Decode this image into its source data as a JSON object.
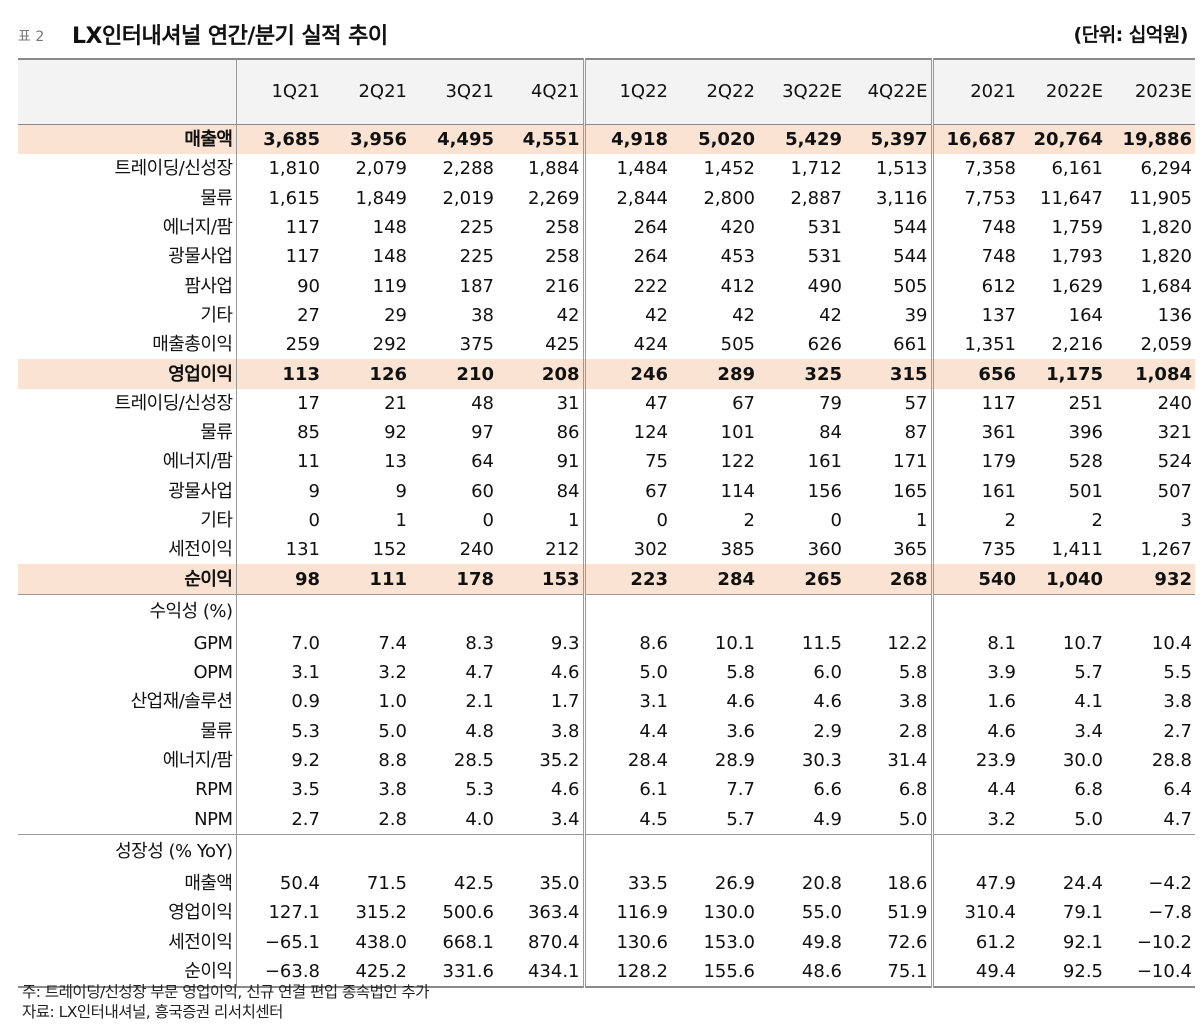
{
  "table_no": "표 2",
  "title": "LX인터내셔널 연간/분기 실적 추이",
  "unit": "(단위: 십억원)",
  "columns": [
    "1Q21",
    "2Q21",
    "3Q21",
    "4Q21",
    "1Q22",
    "2Q22",
    "3Q22E",
    "4Q22E",
    "2021",
    "2022E",
    "2023E"
  ],
  "rows": [
    {
      "label": "매출액",
      "indent": 0,
      "highlight": true,
      "values": [
        "3,685",
        "3,956",
        "4,495",
        "4,551",
        "4,918",
        "5,020",
        "5,429",
        "5,397",
        "16,687",
        "20,764",
        "19,886"
      ]
    },
    {
      "label": "트레이딩/신성장",
      "indent": 1,
      "values": [
        "1,810",
        "2,079",
        "2,288",
        "1,884",
        "1,484",
        "1,452",
        "1,712",
        "1,513",
        "7,358",
        "6,161",
        "6,294"
      ]
    },
    {
      "label": "물류",
      "indent": 1,
      "values": [
        "1,615",
        "1,849",
        "2,019",
        "2,269",
        "2,844",
        "2,800",
        "2,887",
        "3,116",
        "7,753",
        "11,647",
        "11,905"
      ]
    },
    {
      "label": "에너지/팜",
      "indent": 1,
      "values": [
        "117",
        "148",
        "225",
        "258",
        "264",
        "420",
        "531",
        "544",
        "748",
        "1,759",
        "1,820"
      ]
    },
    {
      "label": "광물사업",
      "indent": 2,
      "values": [
        "117",
        "148",
        "225",
        "258",
        "264",
        "453",
        "531",
        "544",
        "748",
        "1,793",
        "1,820"
      ]
    },
    {
      "label": "팜사업",
      "indent": 2,
      "values": [
        "90",
        "119",
        "187",
        "216",
        "222",
        "412",
        "490",
        "505",
        "612",
        "1,629",
        "1,684"
      ]
    },
    {
      "label": "기타",
      "indent": 2,
      "values": [
        "27",
        "29",
        "38",
        "42",
        "42",
        "42",
        "42",
        "39",
        "137",
        "164",
        "136"
      ]
    },
    {
      "label": "매출총이익",
      "indent": 0,
      "values": [
        "259",
        "292",
        "375",
        "425",
        "424",
        "505",
        "626",
        "661",
        "1,351",
        "2,216",
        "2,059"
      ]
    },
    {
      "label": "영업이익",
      "indent": 0,
      "highlight": true,
      "values": [
        "113",
        "126",
        "210",
        "208",
        "246",
        "289",
        "325",
        "315",
        "656",
        "1,175",
        "1,084"
      ]
    },
    {
      "label": "트레이딩/신성장",
      "indent": 1,
      "values": [
        "17",
        "21",
        "48",
        "31",
        "47",
        "67",
        "79",
        "57",
        "117",
        "251",
        "240"
      ]
    },
    {
      "label": "물류",
      "indent": 1,
      "values": [
        "85",
        "92",
        "97",
        "86",
        "124",
        "101",
        "84",
        "87",
        "361",
        "396",
        "321"
      ]
    },
    {
      "label": "에너지/팜",
      "indent": 1,
      "values": [
        "11",
        "13",
        "64",
        "91",
        "75",
        "122",
        "161",
        "171",
        "179",
        "528",
        "524"
      ]
    },
    {
      "label": "광물사업",
      "indent": 2,
      "values": [
        "9",
        "9",
        "60",
        "84",
        "67",
        "114",
        "156",
        "165",
        "161",
        "501",
        "507"
      ]
    },
    {
      "label": "기타",
      "indent": 2,
      "values": [
        "0",
        "1",
        "0",
        "1",
        "0",
        "2",
        "0",
        "1",
        "2",
        "2",
        "3"
      ]
    },
    {
      "label": "세전이익",
      "indent": 0,
      "values": [
        "131",
        "152",
        "240",
        "212",
        "302",
        "385",
        "360",
        "365",
        "735",
        "1,411",
        "1,267"
      ]
    },
    {
      "label": "순이익",
      "indent": 0,
      "highlight": true,
      "values": [
        "98",
        "111",
        "178",
        "153",
        "223",
        "284",
        "265",
        "268",
        "540",
        "1,040",
        "932"
      ]
    }
  ],
  "profitability": {
    "header": "수익성 (%)",
    "rows": [
      {
        "label": "GPM",
        "indent": 0,
        "values": [
          "7.0",
          "7.4",
          "8.3",
          "9.3",
          "8.6",
          "10.1",
          "11.5",
          "12.2",
          "8.1",
          "10.7",
          "10.4"
        ]
      },
      {
        "label": "OPM",
        "indent": 0,
        "values": [
          "3.1",
          "3.2",
          "4.7",
          "4.6",
          "5.0",
          "5.8",
          "6.0",
          "5.8",
          "3.9",
          "5.7",
          "5.5"
        ]
      },
      {
        "label": "산업재/솔루션",
        "indent": 1,
        "values": [
          "0.9",
          "1.0",
          "2.1",
          "1.7",
          "3.1",
          "4.6",
          "4.6",
          "3.8",
          "1.6",
          "4.1",
          "3.8"
        ]
      },
      {
        "label": "물류",
        "indent": 1,
        "values": [
          "5.3",
          "5.0",
          "4.8",
          "3.8",
          "4.4",
          "3.6",
          "2.9",
          "2.8",
          "4.6",
          "3.4",
          "2.7"
        ]
      },
      {
        "label": "에너지/팜",
        "indent": 1,
        "values": [
          "9.2",
          "8.8",
          "28.5",
          "35.2",
          "28.4",
          "28.9",
          "30.3",
          "31.4",
          "23.9",
          "30.0",
          "28.8"
        ]
      },
      {
        "label": "RPM",
        "indent": 0,
        "values": [
          "3.5",
          "3.8",
          "5.3",
          "4.6",
          "6.1",
          "7.7",
          "6.6",
          "6.8",
          "4.4",
          "6.8",
          "6.4"
        ]
      },
      {
        "label": "NPM",
        "indent": 0,
        "values": [
          "2.7",
          "2.8",
          "4.0",
          "3.4",
          "4.5",
          "5.7",
          "4.9",
          "5.0",
          "3.2",
          "5.0",
          "4.7"
        ]
      }
    ]
  },
  "growth": {
    "header": "성장성 (% YoY)",
    "rows": [
      {
        "label": "매출액",
        "indent": 0,
        "values": [
          "50.4",
          "71.5",
          "42.5",
          "35.0",
          "33.5",
          "26.9",
          "20.8",
          "18.6",
          "47.9",
          "24.4",
          "−4.2"
        ]
      },
      {
        "label": "영업이익",
        "indent": 0,
        "values": [
          "127.1",
          "315.2",
          "500.6",
          "363.4",
          "116.9",
          "130.0",
          "55.0",
          "51.9",
          "310.4",
          "79.1",
          "−7.8"
        ]
      },
      {
        "label": "세전이익",
        "indent": 0,
        "values": [
          "−65.1",
          "438.0",
          "668.1",
          "870.4",
          "130.6",
          "153.0",
          "49.8",
          "72.6",
          "61.2",
          "92.1",
          "−10.2"
        ]
      },
      {
        "label": "순이익",
        "indent": 0,
        "values": [
          "−63.8",
          "425.2",
          "331.6",
          "434.1",
          "128.2",
          "155.6",
          "48.6",
          "75.1",
          "49.4",
          "92.5",
          "−10.4"
        ]
      }
    ]
  },
  "notes": [
    "주: 트레이딩/신성장 부문 영업이익, 신규 연결 편입 종속법인 추가",
    "자료: LX인터내셔널, 흥국증권 리서치센터"
  ]
}
